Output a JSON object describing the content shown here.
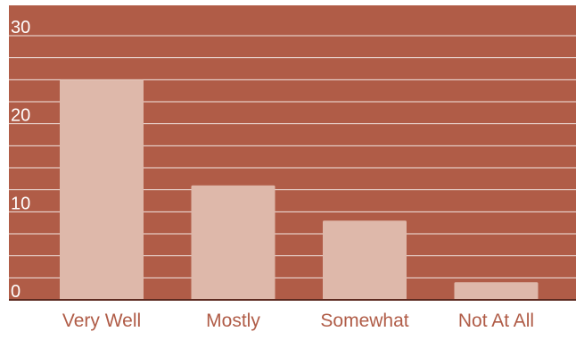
{
  "chart_data": {
    "type": "bar",
    "title": "",
    "xlabel": "",
    "ylabel": "",
    "categories": [
      "Very Well",
      "Mostly",
      "Somewhat",
      "Not At All"
    ],
    "values": [
      25,
      13,
      9,
      2
    ],
    "ylim": [
      0,
      30
    ],
    "yticks": [
      0,
      10,
      20,
      30
    ],
    "minor_gridline_step": 2.5,
    "grid": true,
    "legend": "none",
    "colors": {
      "background": "#b05c47",
      "bar": "#deb8aa",
      "gridline": "#ffffff",
      "baseline": "#5c2a20",
      "tick_label": "#ffffff",
      "category_label": "#b05c47"
    }
  }
}
